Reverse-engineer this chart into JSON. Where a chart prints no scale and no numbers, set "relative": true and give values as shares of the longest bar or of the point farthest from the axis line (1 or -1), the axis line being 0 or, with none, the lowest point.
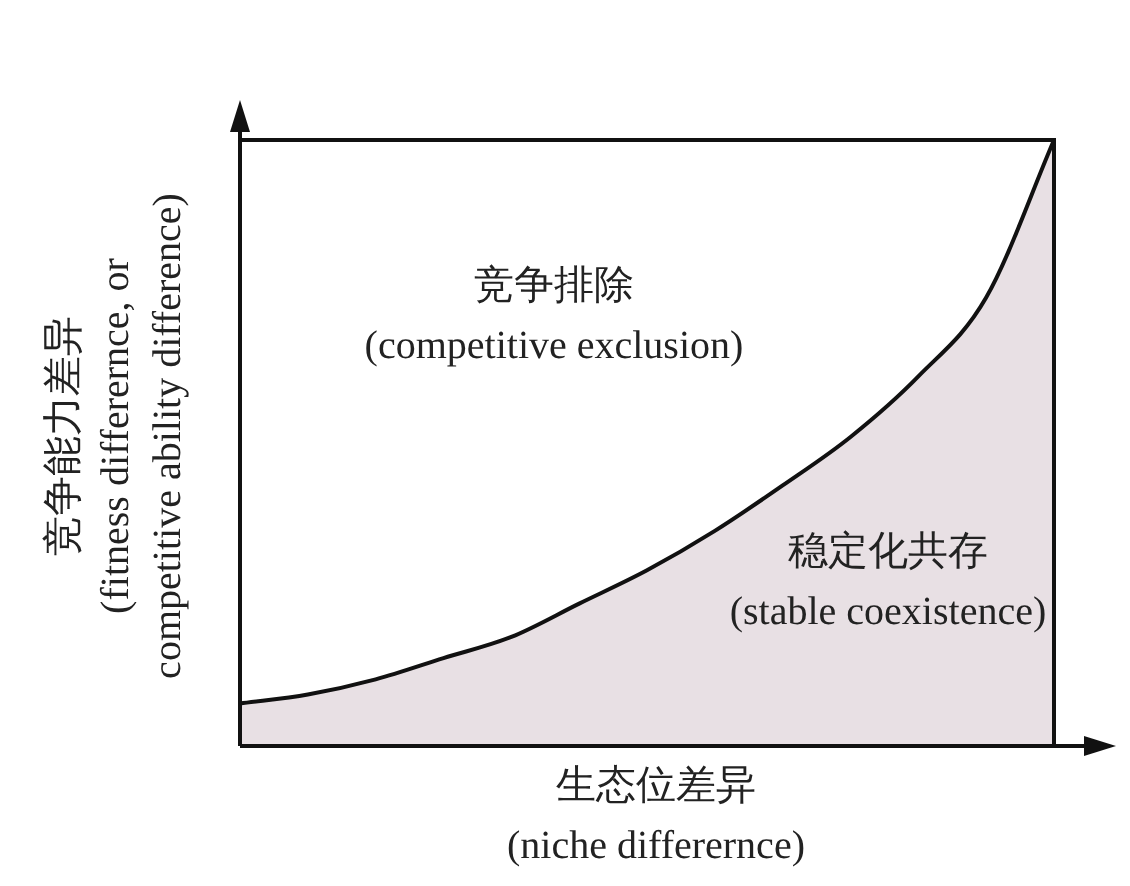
{
  "chart_data": {
    "type": "area",
    "relative": true,
    "categories": [
      null,
      null,
      null,
      null,
      null,
      null,
      null,
      null,
      null,
      null,
      null,
      null,
      null
    ],
    "values": [
      0.07,
      0.085,
      0.11,
      0.145,
      0.18,
      0.235,
      0.29,
      0.355,
      0.43,
      0.51,
      0.61,
      0.74,
      1.0
    ],
    "color": "#e8e0e4",
    "xlabel": "生态位差异\n(niche differernce)",
    "ylabel": "竞争能力差异\n(fitness differernce, or\ncompetitive ability difference)",
    "annotations": [
      "竞争排除\n(competitive exclusion)",
      "稳定化共存\n(stable coexistence)"
    ]
  }
}
